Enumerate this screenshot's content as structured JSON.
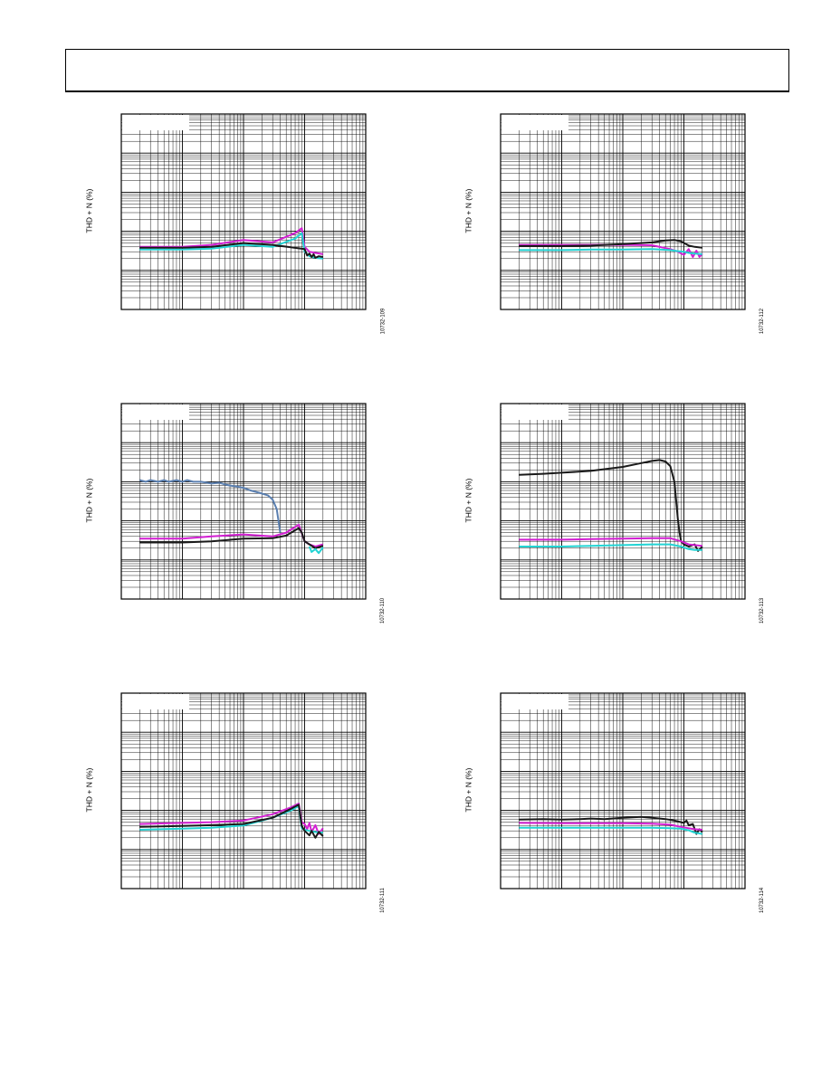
{
  "colors": {
    "magenta": "#d21fd2",
    "cyan": "#22d4d4",
    "black": "#1a1a1a",
    "blue": "#5a7fb0"
  },
  "chart_data": [
    {
      "type": "line",
      "id": "10732-109",
      "ylabel": "THD + N (%)",
      "figure_number": "10732-109",
      "xscale": "log",
      "yscale": "log",
      "xlim": [
        10,
        100000
      ],
      "ylim": [
        0.0001,
        10
      ],
      "grid": true,
      "series": [
        {
          "color": "magenta",
          "x": [
            20,
            100,
            300,
            1000,
            3000,
            7000,
            9000,
            10000,
            12000,
            15000,
            20000
          ],
          "values": [
            0.004,
            0.004,
            0.0045,
            0.006,
            0.0052,
            0.009,
            0.012,
            0.004,
            0.003,
            0.0028,
            0.0026
          ]
        },
        {
          "color": "cyan",
          "x": [
            20,
            100,
            300,
            1000,
            3000,
            7000,
            9000,
            10000,
            12000,
            15000,
            20000
          ],
          "values": [
            0.0034,
            0.0034,
            0.0036,
            0.0045,
            0.004,
            0.0065,
            0.009,
            0.003,
            0.0023,
            0.0021,
            0.002
          ]
        },
        {
          "color": "black",
          "x": [
            20,
            100,
            300,
            1000,
            3000,
            10000,
            11000,
            12000,
            13000,
            14000,
            15000,
            17000,
            20000
          ],
          "values": [
            0.0038,
            0.0038,
            0.004,
            0.005,
            0.0045,
            0.0035,
            0.0024,
            0.0027,
            0.0022,
            0.0026,
            0.0021,
            0.0023,
            0.0022
          ]
        }
      ]
    },
    {
      "type": "line",
      "id": "10732-112",
      "ylabel": "THD + N (%)",
      "figure_number": "10732-112",
      "xscale": "log",
      "yscale": "log",
      "xlim": [
        10,
        100000
      ],
      "ylim": [
        0.0001,
        10
      ],
      "grid": true,
      "series": [
        {
          "color": "magenta",
          "x": [
            20,
            100,
            300,
            1000,
            3000,
            6000,
            8000,
            10000,
            12000,
            14000,
            16000,
            18000,
            20000
          ],
          "values": [
            0.0045,
            0.0045,
            0.0045,
            0.0045,
            0.0044,
            0.0035,
            0.003,
            0.0025,
            0.0035,
            0.0022,
            0.0032,
            0.0022,
            0.0027
          ]
        },
        {
          "color": "cyan",
          "x": [
            20,
            100,
            300,
            1000,
            3000,
            6000,
            8000,
            10000,
            12000,
            15000,
            20000
          ],
          "values": [
            0.0033,
            0.0033,
            0.0034,
            0.0034,
            0.0035,
            0.0033,
            0.0031,
            0.003,
            0.0028,
            0.0027,
            0.0026
          ]
        },
        {
          "color": "black",
          "x": [
            20,
            100,
            300,
            1000,
            3000,
            5000,
            7000,
            9000,
            12000,
            15000,
            20000
          ],
          "values": [
            0.0042,
            0.0042,
            0.0043,
            0.0047,
            0.0052,
            0.0058,
            0.006,
            0.0055,
            0.0043,
            0.004,
            0.0038
          ]
        }
      ]
    },
    {
      "type": "line",
      "id": "10732-110",
      "ylabel": "THD + N (%)",
      "figure_number": "10732-110",
      "xscale": "log",
      "yscale": "log",
      "xlim": [
        10,
        100000
      ],
      "ylim": [
        0.0001,
        10
      ],
      "grid": true,
      "series": [
        {
          "color": "blue",
          "x": [
            20,
            25,
            30,
            40,
            50,
            60,
            80,
            100,
            120,
            150,
            200,
            250,
            300,
            400,
            500,
            600,
            800,
            1000,
            1300,
            1600,
            2000,
            2500,
            3000,
            3500,
            4000
          ],
          "values": [
            0.11,
            0.1,
            0.11,
            0.1,
            0.11,
            0.1,
            0.11,
            0.1,
            0.11,
            0.1,
            0.1,
            0.095,
            0.09,
            0.095,
            0.085,
            0.08,
            0.075,
            0.07,
            0.06,
            0.055,
            0.05,
            0.045,
            0.035,
            0.02,
            0.005
          ]
        },
        {
          "color": "magenta",
          "x": [
            20,
            100,
            300,
            1000,
            3000,
            5000,
            8000,
            10000,
            12000,
            15000,
            20000
          ],
          "values": [
            0.0035,
            0.0035,
            0.004,
            0.0045,
            0.004,
            0.005,
            0.008,
            0.003,
            0.0025,
            0.0022,
            0.0025
          ]
        },
        {
          "color": "black",
          "x": [
            20,
            100,
            300,
            1000,
            3000,
            5000,
            8000,
            9000,
            10000,
            12000,
            15000,
            20000
          ],
          "values": [
            0.0028,
            0.0028,
            0.003,
            0.0035,
            0.0036,
            0.0042,
            0.0065,
            0.005,
            0.003,
            0.0025,
            0.002,
            0.0023
          ]
        },
        {
          "color": "cyan",
          "x": [
            12000,
            13000,
            15000,
            17000,
            20000
          ],
          "values": [
            0.0022,
            0.0016,
            0.0019,
            0.0015,
            0.0021
          ]
        }
      ]
    },
    {
      "type": "line",
      "id": "10732-113",
      "ylabel": "THD + N (%)",
      "figure_number": "10732-113",
      "xscale": "log",
      "yscale": "log",
      "xlim": [
        10,
        100000
      ],
      "ylim": [
        0.0001,
        10
      ],
      "grid": true,
      "series": [
        {
          "color": "black",
          "x": [
            20,
            50,
            100,
            300,
            1000,
            2000,
            3000,
            4000,
            5000,
            6000,
            7000,
            7500,
            8000,
            8500,
            9000,
            10000,
            12000,
            15000,
            17000,
            20000
          ],
          "values": [
            0.15,
            0.16,
            0.17,
            0.19,
            0.24,
            0.3,
            0.34,
            0.36,
            0.33,
            0.25,
            0.1,
            0.03,
            0.01,
            0.005,
            0.003,
            0.0025,
            0.0022,
            0.0025,
            0.0017,
            0.0022
          ]
        },
        {
          "color": "magenta",
          "x": [
            20,
            100,
            300,
            1000,
            3000,
            6000,
            9000,
            12000,
            15000,
            20000
          ],
          "values": [
            0.0033,
            0.0033,
            0.0034,
            0.0035,
            0.0036,
            0.0036,
            0.003,
            0.0025,
            0.0024,
            0.0023
          ]
        },
        {
          "color": "cyan",
          "x": [
            20,
            100,
            300,
            1000,
            3000,
            6000,
            9000,
            12000,
            15000,
            20000
          ],
          "values": [
            0.0022,
            0.0022,
            0.0023,
            0.0024,
            0.0025,
            0.0025,
            0.0022,
            0.0019,
            0.0018,
            0.0018
          ]
        }
      ]
    },
    {
      "type": "line",
      "id": "10732-111",
      "ylabel": "THD + N (%)",
      "figure_number": "10732-111",
      "xscale": "log",
      "yscale": "log",
      "xlim": [
        10,
        100000
      ],
      "ylim": [
        0.0001,
        10
      ],
      "grid": true,
      "series": [
        {
          "color": "magenta",
          "x": [
            20,
            100,
            300,
            1000,
            3000,
            6000,
            8000,
            9000,
            10000,
            11000,
            12000,
            13000,
            15000,
            17000,
            20000
          ],
          "values": [
            0.0045,
            0.0048,
            0.005,
            0.0055,
            0.008,
            0.012,
            0.015,
            0.005,
            0.0045,
            0.0033,
            0.0048,
            0.0028,
            0.0042,
            0.0025,
            0.0035
          ]
        },
        {
          "color": "cyan",
          "x": [
            20,
            100,
            300,
            1000,
            3000,
            6000,
            8000,
            9000,
            10000,
            12000,
            15000,
            20000
          ],
          "values": [
            0.0032,
            0.0034,
            0.0036,
            0.0041,
            0.0065,
            0.01,
            0.013,
            0.0035,
            0.0032,
            0.003,
            0.0028,
            0.0027
          ]
        },
        {
          "color": "black",
          "x": [
            20,
            100,
            300,
            1000,
            3000,
            6000,
            8000,
            9000,
            10000,
            12000,
            13000,
            15000,
            17000,
            20000
          ],
          "values": [
            0.0038,
            0.004,
            0.0042,
            0.0045,
            0.0065,
            0.011,
            0.014,
            0.004,
            0.003,
            0.0023,
            0.003,
            0.002,
            0.0028,
            0.0022
          ]
        }
      ]
    },
    {
      "type": "line",
      "id": "10732-114",
      "ylabel": "THD + N (%)",
      "figure_number": "10732-114",
      "xscale": "log",
      "yscale": "log",
      "xlim": [
        10,
        100000
      ],
      "ylim": [
        0.0001,
        10
      ],
      "grid": true,
      "series": [
        {
          "color": "black",
          "x": [
            20,
            50,
            100,
            200,
            300,
            500,
            1000,
            2000,
            3000,
            5000,
            7000,
            9000,
            10000,
            11000,
            12000,
            14000,
            16000,
            18000,
            20000
          ],
          "values": [
            0.0058,
            0.006,
            0.0058,
            0.006,
            0.0062,
            0.006,
            0.0065,
            0.0068,
            0.0065,
            0.006,
            0.0055,
            0.005,
            0.0048,
            0.0055,
            0.0042,
            0.0045,
            0.0025,
            0.0033,
            0.0028
          ]
        },
        {
          "color": "magenta",
          "x": [
            20,
            100,
            300,
            1000,
            3000,
            6000,
            9000,
            12000,
            15000,
            20000
          ],
          "values": [
            0.0048,
            0.0047,
            0.0047,
            0.0047,
            0.0046,
            0.0043,
            0.0038,
            0.0035,
            0.0033,
            0.0032
          ]
        },
        {
          "color": "cyan",
          "x": [
            20,
            100,
            300,
            1000,
            3000,
            6000,
            9000,
            12000,
            15000,
            20000
          ],
          "values": [
            0.0036,
            0.0036,
            0.0036,
            0.0036,
            0.0036,
            0.0035,
            0.0034,
            0.0031,
            0.0027,
            0.0025
          ]
        }
      ]
    }
  ]
}
